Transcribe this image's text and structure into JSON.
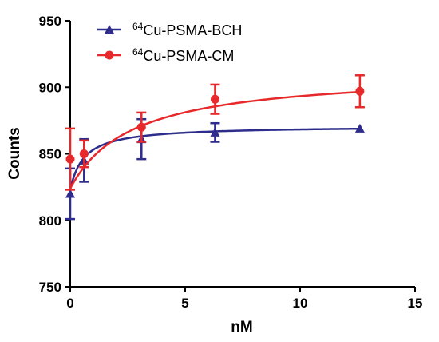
{
  "chart_data": {
    "type": "line",
    "title": "",
    "xlabel": "nM",
    "ylabel": "Counts",
    "xlim": [
      0,
      15
    ],
    "ylim": [
      750,
      950
    ],
    "xticks": [
      0,
      5,
      10,
      15
    ],
    "yticks": [
      750,
      800,
      850,
      900,
      950
    ],
    "grid": false,
    "legend_placement": "top-left",
    "series": [
      {
        "name_sup": "64",
        "name_text": "Cu-PSMA-BCH",
        "color": "#2e2d8c",
        "marker": "triangle",
        "x": [
          0,
          0.6,
          3.1,
          6.3,
          12.6
        ],
        "y": [
          820,
          845,
          861,
          866,
          869
        ],
        "err": [
          19,
          16,
          15,
          7,
          0
        ],
        "fit": {
          "model": "one-site",
          "Bmax": 48,
          "Kd": 0.6,
          "base": 823
        }
      },
      {
        "name_sup": "64",
        "name_text": "Cu-PSMA-CM",
        "color": "#e8292b",
        "marker": "circle",
        "x": [
          0,
          0.6,
          3.1,
          6.3,
          12.6
        ],
        "y": [
          846,
          850,
          870,
          891,
          897
        ],
        "err": [
          23,
          10,
          11,
          11,
          12
        ],
        "fit": {
          "model": "one-site",
          "Bmax": 88,
          "Kd": 2.7,
          "base": 824
        }
      }
    ]
  }
}
